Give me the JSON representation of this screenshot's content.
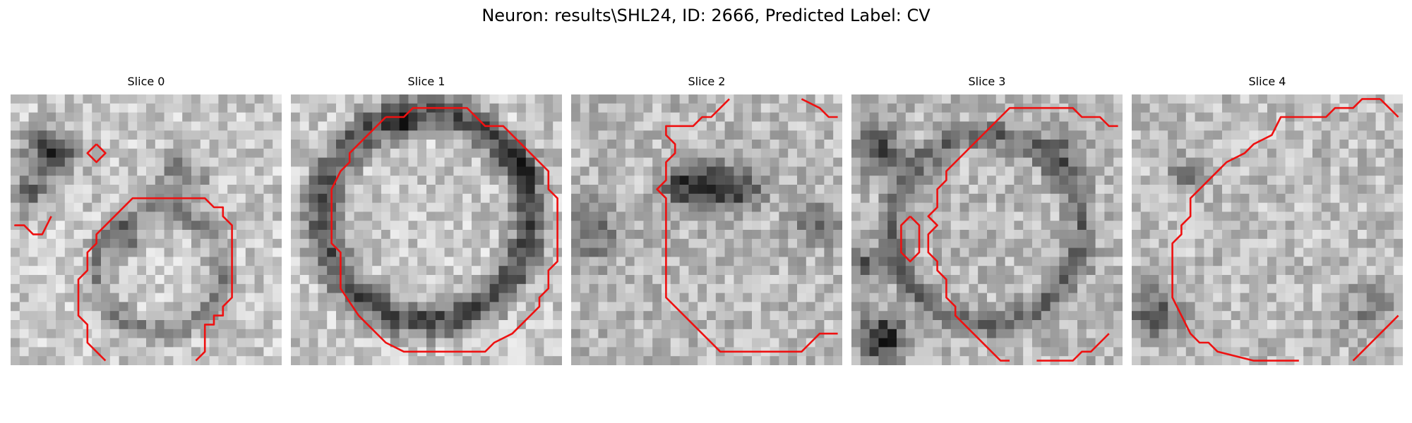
{
  "figure": {
    "title": "Neuron: results\\SHL24, ID: 2666, Predicted Label: CV"
  },
  "panels": [
    {
      "title": "Slice 0"
    },
    {
      "title": "Slice 1"
    },
    {
      "title": "Slice 2"
    },
    {
      "title": "Slice 3"
    },
    {
      "title": "Slice 4"
    }
  ],
  "colors": {
    "contour": "#ee1111",
    "background": "#ffffff"
  }
}
